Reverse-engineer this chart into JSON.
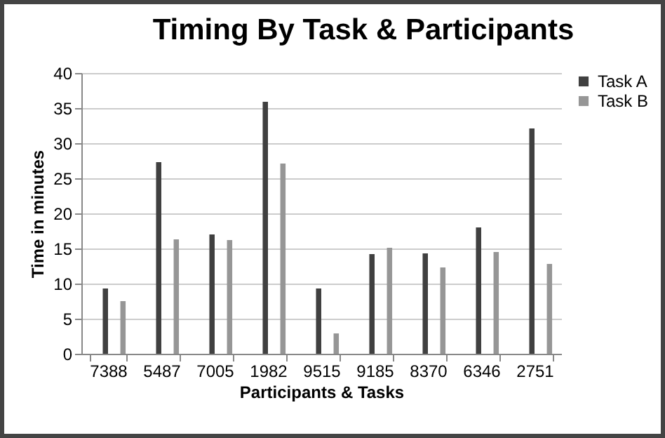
{
  "chart_data": {
    "type": "bar",
    "title": "Timing By Task & Participants",
    "xlabel": "Participants & Tasks",
    "ylabel": "Time in minutes",
    "categories": [
      "7388",
      "5487",
      "7005",
      "1982",
      "9515",
      "9185",
      "8370",
      "6346",
      "2751"
    ],
    "series": [
      {
        "name": "Task A",
        "color": "#404040",
        "values": [
          9.3,
          27.3,
          17,
          35.9,
          9.3,
          14.2,
          14.3,
          18,
          32.1
        ]
      },
      {
        "name": "Task B",
        "color": "#969696",
        "values": [
          7.5,
          16.3,
          16.2,
          27.1,
          2.9,
          15.1,
          12.3,
          14.5,
          12.8
        ]
      }
    ],
    "ylim": [
      0,
      40
    ],
    "yticks": [
      0,
      5,
      10,
      15,
      20,
      25,
      30,
      35,
      40
    ],
    "grid": "y",
    "legend": "right"
  }
}
